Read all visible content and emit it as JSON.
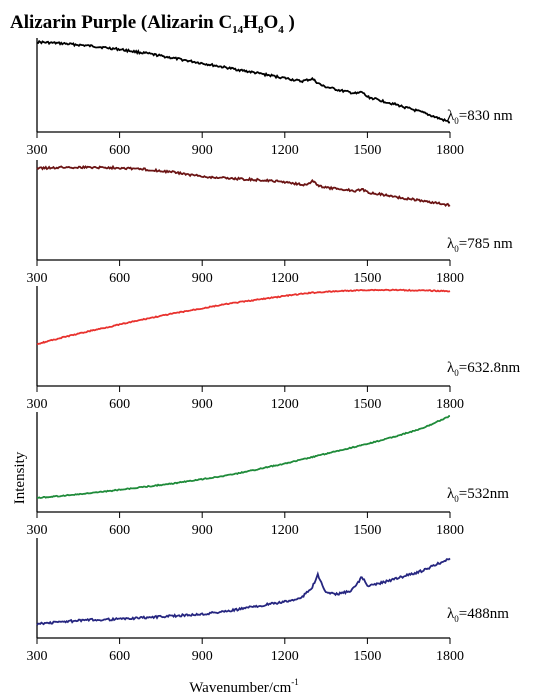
{
  "title": {
    "main": "Alizarin Purple (Alizarin C",
    "sub1": "14",
    "h": "H",
    "sub2": "8",
    "o": "O",
    "sub3": "4",
    "close": " )"
  },
  "chart_data": [
    {
      "type": "line",
      "series_label": "λ₀=830 nm",
      "label_parts": [
        "λ",
        "0",
        "=830 nm"
      ],
      "color": "#000000",
      "xlim": [
        300,
        1800
      ],
      "xticks": [
        300,
        600,
        900,
        1200,
        1500,
        1800
      ],
      "x": [
        300,
        400,
        500,
        600,
        700,
        800,
        900,
        1000,
        1100,
        1200,
        1260,
        1300,
        1320,
        1340,
        1400,
        1460,
        1480,
        1500,
        1600,
        1700,
        1800
      ],
      "y": [
        1.0,
        0.98,
        0.95,
        0.91,
        0.86,
        0.8,
        0.74,
        0.68,
        0.62,
        0.56,
        0.52,
        0.55,
        0.5,
        0.46,
        0.41,
        0.37,
        0.39,
        0.33,
        0.24,
        0.14,
        0.02
      ]
    },
    {
      "type": "line",
      "series_label": "λ₀=785 nm",
      "label_parts": [
        "λ",
        "0",
        "=785 nm"
      ],
      "color": "#6b1414",
      "xlim": [
        300,
        1800
      ],
      "xticks": [
        300,
        600,
        900,
        1200,
        1500,
        1800
      ],
      "x": [
        300,
        400,
        500,
        600,
        700,
        800,
        900,
        1000,
        1100,
        1200,
        1280,
        1300,
        1320,
        1340,
        1400,
        1460,
        1480,
        1500,
        1600,
        1700,
        1800
      ],
      "y": [
        0.9,
        0.92,
        0.92,
        0.91,
        0.87,
        0.8,
        0.7,
        0.66,
        0.62,
        0.57,
        0.5,
        0.59,
        0.5,
        0.44,
        0.4,
        0.36,
        0.4,
        0.33,
        0.22,
        0.12,
        0.02
      ]
    },
    {
      "type": "line",
      "series_label": "λ₀=632.8nm",
      "label_parts": [
        "λ",
        "0",
        "=632.8nm"
      ],
      "color": "#e8322e",
      "xlim": [
        300,
        1800
      ],
      "xticks": [
        300,
        600,
        900,
        1200,
        1500,
        1800
      ],
      "x": [
        300,
        400,
        500,
        600,
        700,
        800,
        900,
        1000,
        1100,
        1200,
        1300,
        1400,
        1500,
        1600,
        1700,
        1800
      ],
      "y": [
        0.0,
        0.13,
        0.25,
        0.36,
        0.47,
        0.57,
        0.66,
        0.75,
        0.82,
        0.89,
        0.95,
        0.98,
        1.0,
        1.0,
        0.99,
        0.98
      ]
    },
    {
      "type": "line",
      "series_label": "λ₀=532nm",
      "label_parts": [
        "λ",
        "0",
        "=532nm"
      ],
      "color": "#1f8b3a",
      "xlim": [
        300,
        1800
      ],
      "xticks": [
        300,
        600,
        900,
        1200,
        1500,
        1800
      ],
      "x": [
        300,
        400,
        500,
        600,
        700,
        800,
        900,
        1000,
        1100,
        1200,
        1300,
        1400,
        1500,
        1600,
        1700,
        1800
      ],
      "y": [
        0.0,
        0.03,
        0.06,
        0.1,
        0.14,
        0.18,
        0.23,
        0.28,
        0.35,
        0.42,
        0.5,
        0.58,
        0.66,
        0.75,
        0.85,
        1.0
      ]
    },
    {
      "type": "line",
      "series_label": "λ₀=488nm",
      "label_parts": [
        "λ",
        "0",
        "=488nm"
      ],
      "color": "#262680",
      "xlim": [
        300,
        1800
      ],
      "xticks": [
        300,
        600,
        900,
        1200,
        1500,
        1800
      ],
      "x": [
        300,
        400,
        500,
        600,
        700,
        800,
        900,
        1000,
        1100,
        1200,
        1260,
        1300,
        1320,
        1345,
        1380,
        1440,
        1470,
        1480,
        1500,
        1550,
        1600,
        1700,
        1800
      ],
      "y": [
        0.0,
        0.03,
        0.05,
        0.06,
        0.08,
        0.1,
        0.12,
        0.16,
        0.22,
        0.27,
        0.32,
        0.45,
        0.6,
        0.4,
        0.36,
        0.4,
        0.52,
        0.58,
        0.46,
        0.5,
        0.55,
        0.65,
        0.8
      ]
    }
  ],
  "axes": {
    "xlabel": "Wavenumber/cm",
    "xlabel_sup": "-1",
    "ylabel": "Intensity"
  }
}
